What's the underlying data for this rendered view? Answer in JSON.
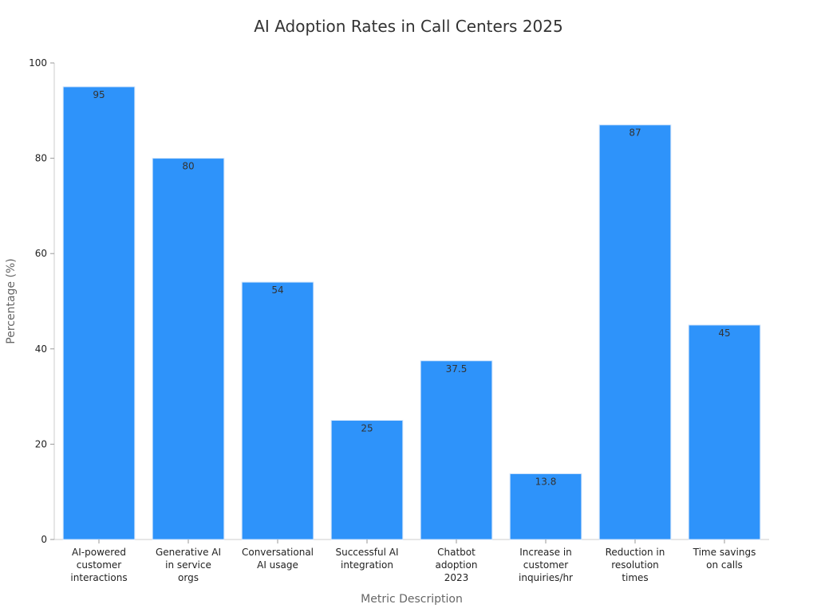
{
  "chart_data": {
    "type": "bar",
    "title": "AI Adoption Rates in Call Centers 2025",
    "xlabel": "Metric Description",
    "ylabel": "Percentage (%)",
    "ylim": [
      0,
      100
    ],
    "yticks": [
      0,
      20,
      40,
      60,
      80,
      100
    ],
    "grid": false,
    "categories": [
      [
        "AI-powered",
        "customer",
        "interactions"
      ],
      [
        "Generative AI",
        "in service",
        "orgs"
      ],
      [
        "Conversational",
        "AI usage"
      ],
      [
        "Successful AI",
        "integration"
      ],
      [
        "Chatbot",
        "adoption",
        "2023"
      ],
      [
        "Increase in",
        "customer",
        "inquiries/hr"
      ],
      [
        "Reduction in",
        "resolution",
        "times"
      ],
      [
        "Time savings",
        "on calls"
      ]
    ],
    "values": [
      95,
      80,
      54,
      25,
      37.5,
      13.8,
      87,
      45
    ],
    "bar_color": "#2e93fa",
    "bar_edge_color": "#cfe3fb"
  }
}
